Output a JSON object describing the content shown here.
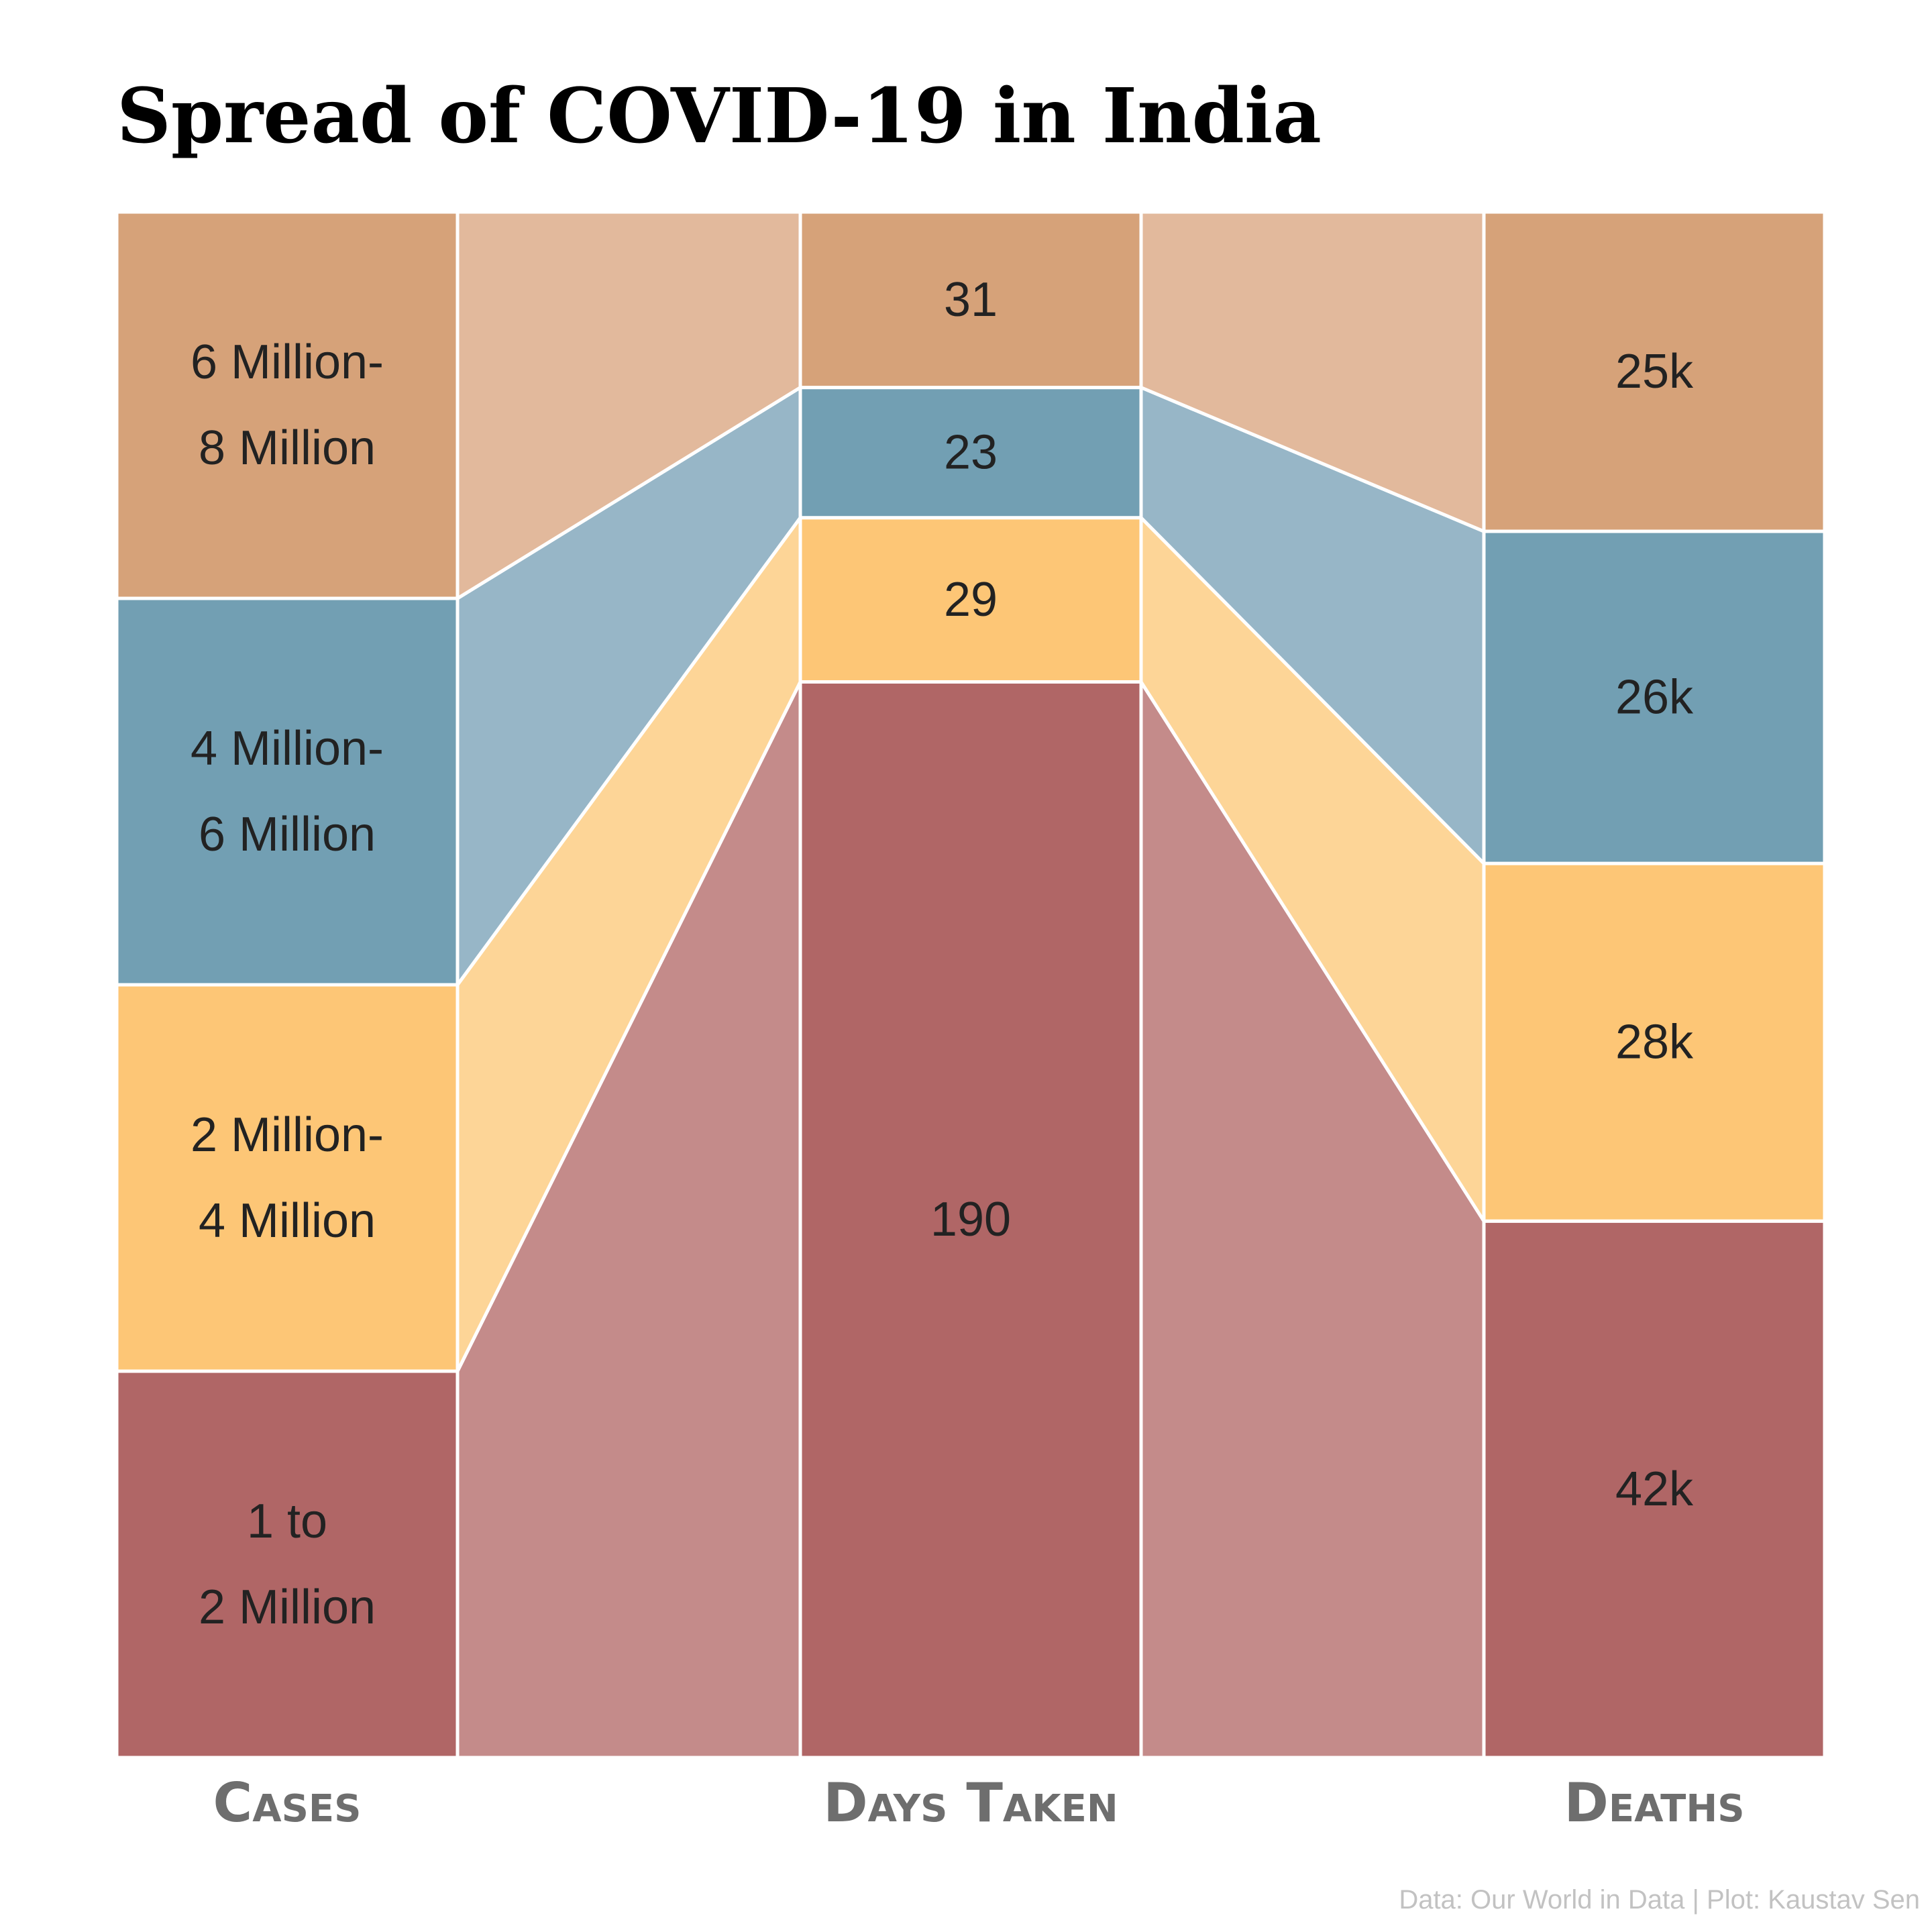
{
  "chart_data": {
    "type": "area",
    "title": "Spread of COVID-19 in India",
    "caption": "Data: Our World in Data | Plot: Kaustav Sen",
    "columns": [
      "Cases",
      "Days Taken",
      "Deaths"
    ],
    "groups": [
      {
        "case_range": "1 to 2 Million",
        "cases_label": [
          "1 to",
          "2 Million"
        ],
        "cases_value": 1,
        "days": 190,
        "days_label": "190",
        "deaths_k": 42,
        "deaths_label": "42k",
        "color": "#b06666",
        "flow_color": "#c48b8a"
      },
      {
        "case_range": "2 Million-4 Million",
        "cases_label": [
          "2 Million-",
          "4 Million"
        ],
        "cases_value": 1,
        "days": 29,
        "days_label": "29",
        "deaths_k": 28,
        "deaths_label": "28k",
        "color": "#fdc676",
        "flow_color": "#fdd597"
      },
      {
        "case_range": "4 Million-6 Million",
        "cases_label": [
          "4 Million-",
          "6 Million"
        ],
        "cases_value": 1,
        "days": 23,
        "days_label": "23",
        "deaths_k": 26,
        "deaths_label": "26k",
        "color": "#729fb3",
        "flow_color": "#97b6c7"
      },
      {
        "case_range": "6 Million-8 Million",
        "cases_label": [
          "6 Million-",
          "8 Million"
        ],
        "cases_value": 1,
        "days": 31,
        "days_label": "31",
        "deaths_k": 25,
        "deaths_label": "25k",
        "color": "#d6a279",
        "flow_color": "#e2b99c"
      }
    ]
  }
}
